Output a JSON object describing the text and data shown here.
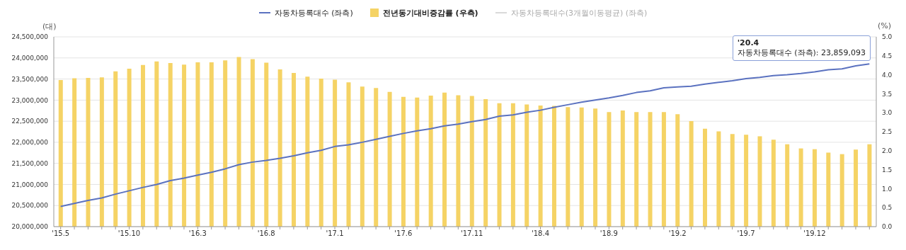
{
  "chart_data": {
    "type": "bar",
    "ylabel": "(대)",
    "y2label": "(%)",
    "categories": [
      "'15.5",
      null,
      null,
      null,
      null,
      "'15.10",
      null,
      null,
      null,
      null,
      "'16.3",
      null,
      null,
      null,
      null,
      "'16.8",
      null,
      null,
      null,
      null,
      "'17.1",
      null,
      null,
      null,
      null,
      "'17.6",
      null,
      null,
      null,
      null,
      "'17.11",
      null,
      null,
      null,
      null,
      "'18.4",
      null,
      null,
      null,
      null,
      "'18.9",
      null,
      null,
      null,
      null,
      "'19.2",
      null,
      null,
      null,
      null,
      "'19.7",
      null,
      null,
      null,
      null,
      "'19.12",
      null,
      null,
      null,
      null
    ],
    "series": [
      {
        "name": "자동차등록대수 (좌측)",
        "type": "line",
        "axis": "y",
        "color": "#5b72c0",
        "values": [
          20480000,
          20550000,
          20620000,
          20680000,
          20770000,
          20850000,
          20930000,
          21000000,
          21090000,
          21150000,
          21220000,
          21290000,
          21370000,
          21470000,
          21530000,
          21570000,
          21620000,
          21680000,
          21750000,
          21810000,
          21900000,
          21940000,
          22000000,
          22070000,
          22140000,
          22210000,
          22270000,
          22320000,
          22390000,
          22430000,
          22490000,
          22540000,
          22620000,
          22650000,
          22710000,
          22760000,
          22830000,
          22890000,
          22950000,
          23000000,
          23050000,
          23110000,
          23180000,
          23220000,
          23290000,
          23310000,
          23330000,
          23380000,
          23420000,
          23460000,
          23510000,
          23540000,
          23580000,
          23600000,
          23630000,
          23670000,
          23720000,
          23740000,
          23810000,
          23859093
        ]
      },
      {
        "name": "전년동기대비증감률 (우측)",
        "type": "bar",
        "axis": "y2",
        "color": "#f5d365",
        "values": [
          3.86,
          3.91,
          3.92,
          3.93,
          4.09,
          4.16,
          4.26,
          4.35,
          4.31,
          4.27,
          4.33,
          4.33,
          4.38,
          4.47,
          4.41,
          4.32,
          4.14,
          4.05,
          3.95,
          3.9,
          3.87,
          3.8,
          3.69,
          3.65,
          3.55,
          3.42,
          3.4,
          3.45,
          3.53,
          3.46,
          3.44,
          3.36,
          3.25,
          3.25,
          3.22,
          3.19,
          3.18,
          3.15,
          3.14,
          3.11,
          3.02,
          3.06,
          3.02,
          3.02,
          3.02,
          2.96,
          2.78,
          2.58,
          2.51,
          2.44,
          2.42,
          2.38,
          2.29,
          2.17,
          2.06,
          2.04,
          1.95,
          1.91,
          2.03,
          2.17
        ]
      },
      {
        "name": "자동차등록대수(3개월이동평균) (좌측)",
        "type": "line",
        "axis": "y",
        "color": "#d9d9d9",
        "values": [
          null,
          null,
          null,
          null,
          null,
          null,
          null,
          null,
          null,
          null,
          null,
          null,
          null,
          null,
          null,
          null,
          null,
          null,
          null,
          null,
          null,
          null,
          null,
          null,
          null,
          null,
          null,
          null,
          null,
          null,
          null,
          null,
          null,
          null,
          null,
          null,
          null,
          null,
          null,
          null,
          null,
          null,
          null,
          null,
          null,
          null,
          null,
          null,
          null,
          null,
          null,
          null,
          null,
          null,
          null,
          null,
          null,
          null,
          null,
          null
        ]
      }
    ],
    "ylim": [
      20000000,
      24500000
    ],
    "yticks": [
      {
        "value": 20000000,
        "label": "20,000,000"
      },
      {
        "value": 20500000,
        "label": "20,500,000"
      },
      {
        "value": 21000000,
        "label": "21,000,000"
      },
      {
        "value": 21500000,
        "label": "21,500,000"
      },
      {
        "value": 22000000,
        "label": "22,000,000"
      },
      {
        "value": 22500000,
        "label": "22,500,000"
      },
      {
        "value": 23000000,
        "label": "23,000,000"
      },
      {
        "value": 23500000,
        "label": "23,500,000"
      },
      {
        "value": 24000000,
        "label": "24,000,000"
      },
      {
        "value": 24500000,
        "label": "24,500,000"
      }
    ],
    "y2lim": [
      0,
      5
    ],
    "y2ticks": [
      {
        "value": 0,
        "label": "0.0"
      },
      0.5,
      {
        "value": 1,
        "label": "1.0"
      },
      1.5,
      {
        "value": 2,
        "label": "2.0"
      },
      2.5,
      {
        "value": 3,
        "label": "3.0"
      },
      3.5,
      {
        "value": 4,
        "label": "4.0"
      },
      4.5,
      {
        "value": 5,
        "label": "5.0"
      }
    ],
    "grid": "y",
    "legend": "top",
    "marker": "none",
    "line_style": "solid",
    "annotations": [
      "'20.4",
      "자동차등록대수 (좌측): 23,859,093"
    ]
  }
}
